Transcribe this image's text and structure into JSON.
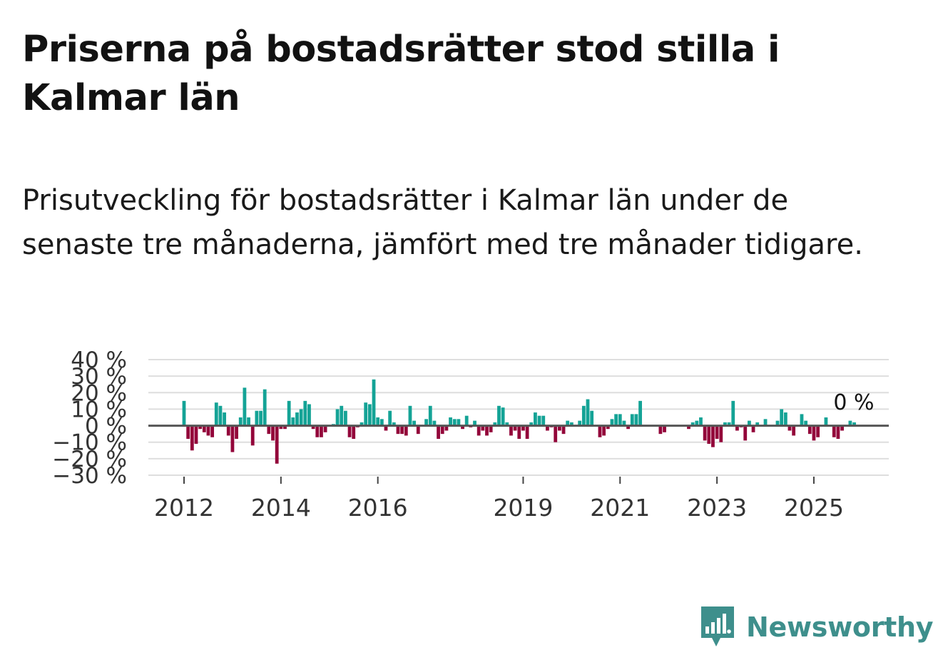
{
  "header": {
    "title": "Priserna på bostadsrätter stod stilla i Kalmar län",
    "subtitle": "Prisutveckling för bostadsrätter i Kalmar län under de senaste tre månaderna, jämfört med tre månader tidigare."
  },
  "brand": {
    "name": "Newsworthy"
  },
  "colors": {
    "positive": "#14a396",
    "negative": "#93063a",
    "grid": "#dedede",
    "zero_line": "#555555"
  },
  "chart_data": {
    "type": "bar",
    "title": "Priserna på bostadsrätter stod stilla i Kalmar län",
    "xlabel": "",
    "ylabel": "",
    "ylim": [
      -30,
      40
    ],
    "y_ticks": [
      40,
      30,
      20,
      10,
      0,
      -10,
      -20,
      -30
    ],
    "y_tick_labels": [
      "40 %",
      "30 %",
      "20 %",
      "10 %",
      "0 %",
      "−10 %",
      "−20 %",
      "−30 %"
    ],
    "x_ticks": [
      {
        "label": "2012",
        "index": 0
      },
      {
        "label": "2014",
        "index": 24
      },
      {
        "label": "2016",
        "index": 48
      },
      {
        "label": "2019",
        "index": 84
      },
      {
        "label": "2021",
        "index": 108
      },
      {
        "label": "2023",
        "index": 132
      },
      {
        "label": "2025",
        "index": 156
      }
    ],
    "last_value_label": "0 %",
    "values": [
      15,
      -8,
      -15,
      -11,
      -2,
      -4,
      -6,
      -7,
      14,
      12,
      8,
      -6,
      -16,
      -8,
      5,
      23,
      5,
      -12,
      9,
      9,
      22,
      -5,
      -9,
      -23,
      -2,
      -2,
      15,
      5,
      8,
      10,
      15,
      13,
      -2,
      -7,
      -7,
      -4,
      0,
      1,
      10,
      12,
      9,
      -7,
      -8,
      -1,
      2,
      14,
      13,
      28,
      5,
      4,
      -3,
      9,
      2,
      -5,
      -5,
      -6,
      12,
      3,
      -5,
      0,
      4,
      12,
      3,
      -8,
      -5,
      -3,
      5,
      4,
      4,
      -2,
      6,
      -1,
      3,
      -6,
      -3,
      -6,
      -4,
      2,
      12,
      11,
      2,
      -6,
      -3,
      -8,
      -3,
      -8,
      2,
      8,
      6,
      6,
      -3,
      -1,
      -10,
      -3,
      -5,
      3,
      2,
      0,
      3,
      12,
      16,
      9,
      0,
      -7,
      -6,
      -2,
      4,
      7,
      7,
      3,
      -2,
      7,
      7,
      15,
      0,
      0,
      0,
      0,
      -5,
      -4,
      0,
      0,
      0,
      0,
      0,
      -2,
      2,
      3,
      5,
      -9,
      -11,
      -13,
      -8,
      -10,
      2,
      2,
      15,
      -3,
      -1,
      -9,
      3,
      -4,
      2,
      0,
      4,
      0,
      0,
      3,
      10,
      8,
      -3,
      -6,
      0,
      7,
      3,
      -5,
      -9,
      -7,
      0,
      5,
      0,
      -7,
      -8,
      -3,
      0,
      3,
      2,
      0
    ]
  }
}
